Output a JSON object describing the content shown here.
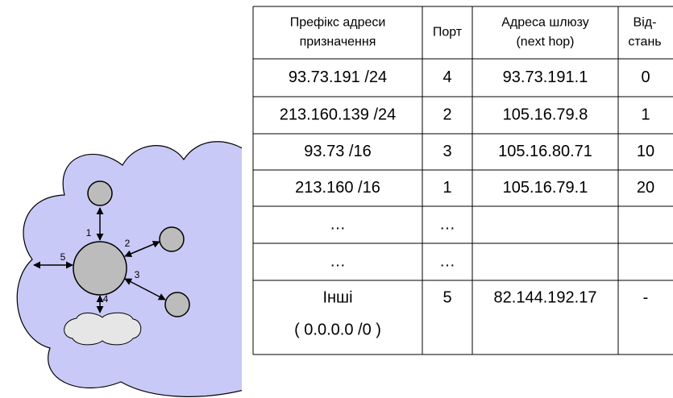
{
  "table": {
    "header": [
      [
        "Префікс адреси",
        "призначення"
      ],
      [
        "Порт"
      ],
      [
        "Адреса шлюзу",
        "(next hop)"
      ],
      [
        "Від-",
        "стань"
      ]
    ],
    "rows": [
      {
        "prefix": [
          "93.73.191 /24"
        ],
        "port": "4",
        "gateway": "93.73.191.1",
        "distance": "0"
      },
      {
        "prefix": [
          "213.160.139 /24"
        ],
        "port": "2",
        "gateway": "105.16.79.8",
        "distance": "1"
      },
      {
        "prefix": [
          "93.73 /16"
        ],
        "port": "3",
        "gateway": "105.16.80.71",
        "distance": "10"
      },
      {
        "prefix": [
          "213.160 /16"
        ],
        "port": "1",
        "gateway": "105.16.79.1",
        "distance": "20"
      },
      {
        "prefix": [
          "…"
        ],
        "port": "…"
      },
      {
        "prefix": [
          "…"
        ],
        "port": "…"
      },
      {
        "prefix": [
          "Інші",
          "( 0.0.0.0 /0 )"
        ],
        "port": "5",
        "gateway": "82.144.192.17",
        "distance": "-"
      }
    ]
  },
  "diagram": {
    "ports": [
      "1",
      "2",
      "3",
      "4",
      "5"
    ]
  }
}
